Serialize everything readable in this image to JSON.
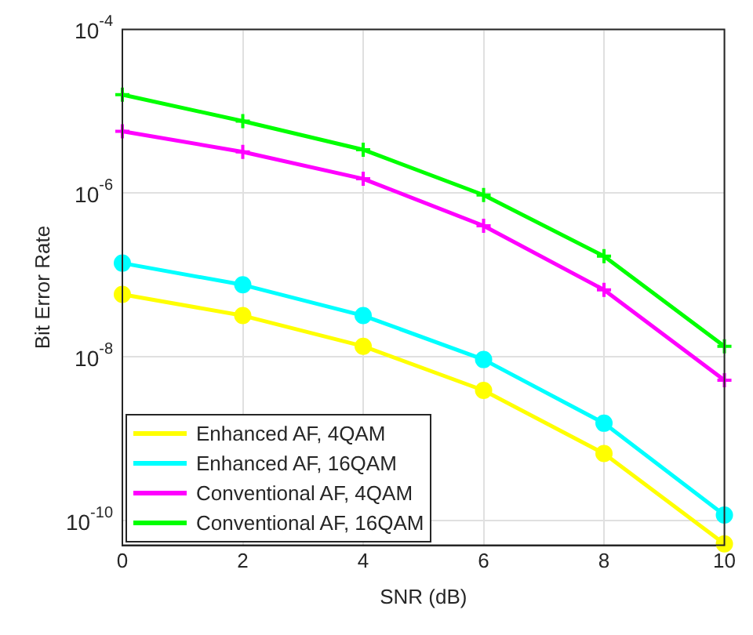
{
  "chart_data": {
    "type": "line",
    "xlabel": "SNR (dB)",
    "ylabel": "Bit Error Rate",
    "x": [
      0,
      2,
      4,
      6,
      8,
      10
    ],
    "series": [
      {
        "name": "Enhanced AF, 4QAM",
        "color": "#ffff00",
        "marker": "circle",
        "values": [
          5.8e-08,
          3.2e-08,
          1.35e-08,
          3.9e-09,
          6.6e-10,
          5.2e-11
        ]
      },
      {
        "name": "Enhanced AF, 16QAM",
        "color": "#00ffff",
        "marker": "circle",
        "values": [
          1.4e-07,
          7.6e-08,
          3.2e-08,
          9.3e-09,
          1.55e-09,
          1.17e-10
        ]
      },
      {
        "name": "Conventional AF, 4QAM",
        "color": "#ff00ff",
        "marker": "cross",
        "values": [
          5.7e-06,
          3.2e-06,
          1.5e-06,
          4e-07,
          6.6e-08,
          5.2e-09
        ]
      },
      {
        "name": "Conventional AF, 16QAM",
        "color": "#00ff00",
        "marker": "cross",
        "values": [
          1.6e-05,
          7.6e-06,
          3.4e-06,
          9.5e-07,
          1.7e-07,
          1.35e-08
        ]
      }
    ],
    "log": "y",
    "xlim": [
      0,
      10
    ],
    "xticks": [
      0,
      2,
      4,
      6,
      8,
      10
    ],
    "ylim": [
      5e-11,
      0.0001
    ],
    "yticks": [
      {
        "value": 1e-10,
        "label": "10$^{-10}$"
      },
      {
        "value": 1e-08,
        "label": "10$^{-8}$"
      },
      {
        "value": 1e-06,
        "label": "10$^{-6}$"
      },
      {
        "value": 0.0001,
        "label": "10$^{-4}$"
      }
    ],
    "grid": true,
    "legend": "bottom left"
  }
}
